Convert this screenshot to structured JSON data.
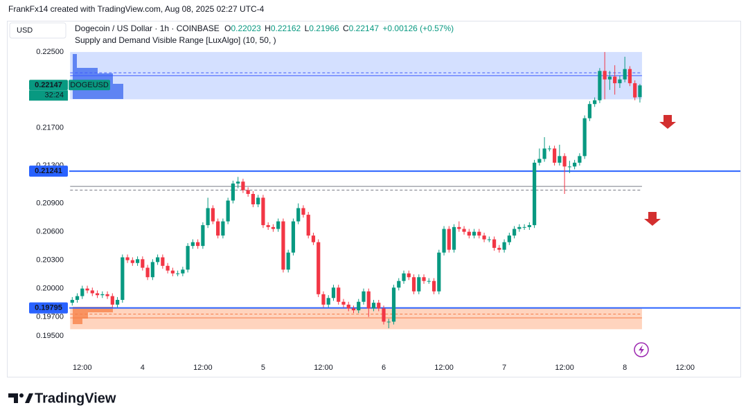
{
  "chart_data": {
    "type": "candlestick",
    "caption": "FrankFx14 created with TradingView.com, Aug 08, 2025 02:27 UTC-4",
    "currency": "USD",
    "title": "Dogecoin / US Dollar · 1h · COINBASE",
    "ohlc_header": {
      "o_label": "O",
      "o": 0.22023,
      "h_label": "H",
      "h": 0.22162,
      "l_label": "L",
      "l": 0.21966,
      "c_label": "C",
      "c": 0.22147,
      "change": "+0.00126 (+0.57%)"
    },
    "indicator": "Supply and Demand Visible Range [LuxAlgo] (10, 50, )",
    "brand": "TradingView",
    "symbol": "DOGEUSD",
    "countdown": "32:24",
    "up_color": "#089981",
    "down_color": "#f23645",
    "xlim": [
      -3,
      143
    ],
    "ylim": [
      0.1928,
      0.2283
    ],
    "xticks": [
      {
        "value": 12,
        "label": "12:00"
      },
      {
        "value": 24,
        "label": "4"
      },
      {
        "value": 36,
        "label": "12:00"
      },
      {
        "value": 48,
        "label": "5"
      },
      {
        "value": 60,
        "label": "12:00"
      },
      {
        "value": 72,
        "label": "6"
      },
      {
        "value": 84,
        "label": "12:00"
      },
      {
        "value": 96,
        "label": "7"
      },
      {
        "value": 108,
        "label": "12:00"
      },
      {
        "value": 120,
        "label": "8"
      },
      {
        "value": 132,
        "label": "12:00"
      }
    ],
    "yticks": [
      {
        "value": 0.225,
        "label": "0.22500"
      },
      {
        "value": 0.217,
        "label": "0.21700"
      },
      {
        "value": 0.213,
        "label": "0.21300"
      },
      {
        "value": 0.209,
        "label": "0.20900"
      },
      {
        "value": 0.206,
        "label": "0.20600"
      },
      {
        "value": 0.203,
        "label": "0.20300"
      },
      {
        "value": 0.2,
        "label": "0.20000"
      },
      {
        "value": 0.197,
        "label": "0.19700"
      },
      {
        "value": 0.195,
        "label": "0.19500"
      }
    ],
    "grid": false,
    "levels": [
      {
        "value": 0.21241,
        "label": "0.21241",
        "color": "#2962ff"
      },
      {
        "value": 0.19795,
        "label": "0.19795",
        "color": "#2962ff"
      }
    ],
    "zones": [
      {
        "top": 0.225,
        "bottom": 0.22,
        "avg": 0.2228,
        "level": 0.2225,
        "fill": "rgba(41,98,255,0.2)",
        "line": "#3d5afe"
      },
      {
        "top": 0.19795,
        "bottom": 0.1957,
        "avg": 0.1973,
        "level": 0.1969,
        "fill": "rgba(255,112,40,0.3)",
        "line": "#f57c48"
      }
    ],
    "equilibrium": {
      "level": 0.2108,
      "avg": 0.2104
    },
    "x": [
      10,
      11,
      12,
      13,
      14,
      15,
      16,
      17,
      18,
      19,
      20,
      21,
      22,
      23,
      24,
      25,
      26,
      27,
      28,
      29,
      30,
      31,
      32,
      33,
      34,
      35,
      36,
      37,
      38,
      39,
      40,
      41,
      42,
      43,
      44,
      45,
      46,
      47,
      48,
      49,
      50,
      51,
      52,
      53,
      54,
      55,
      56,
      57,
      58,
      59,
      60,
      61,
      62,
      63,
      64,
      65,
      66,
      67,
      68,
      69,
      70,
      71,
      72,
      73,
      74,
      75,
      76,
      77,
      78,
      79,
      80,
      81,
      82,
      83,
      84,
      85,
      86,
      87,
      88,
      89,
      90,
      91,
      92,
      93,
      94,
      95,
      96,
      97,
      98,
      99,
      100,
      101,
      102,
      103,
      104,
      105,
      106,
      107,
      108,
      109,
      110,
      111,
      112,
      113,
      114,
      115,
      116,
      117,
      118,
      119,
      120,
      121,
      122,
      123
    ],
    "open": [
      0.1985,
      0.1988,
      0.1992,
      0.2,
      0.1998,
      0.1995,
      0.1993,
      0.1994,
      0.1992,
      0.1983,
      0.1988,
      0.2033,
      0.203,
      0.2027,
      0.2031,
      0.2022,
      0.2012,
      0.2028,
      0.2033,
      0.2024,
      0.2019,
      0.2016,
      0.2016,
      0.202,
      0.2045,
      0.2049,
      0.2045,
      0.2067,
      0.2085,
      0.2071,
      0.2056,
      0.2071,
      0.2093,
      0.2111,
      0.2113,
      0.2104,
      0.21,
      0.2089,
      0.2096,
      0.2067,
      0.2065,
      0.2063,
      0.2071,
      0.202,
      0.2038,
      0.2071,
      0.2085,
      0.2078,
      0.2056,
      0.2049,
      0.1994,
      0.1983,
      0.199,
      0.2001,
      0.1986,
      0.1983,
      0.1979,
      0.1977,
      0.1986,
      0.1997,
      0.1979,
      0.1985,
      0.1979,
      0.1965,
      0.1965,
      0.2001,
      0.2008,
      0.2016,
      0.2012,
      0.1997,
      0.2012,
      0.2008,
      0.2008,
      0.1997,
      0.2038,
      0.2063,
      0.2041,
      0.2065,
      0.2063,
      0.206,
      0.2056,
      0.206,
      0.2056,
      0.2052,
      0.2052,
      0.2043,
      0.2041,
      0.2049,
      0.2056,
      0.2063,
      0.2065,
      0.2065,
      0.2067,
      0.2133,
      0.2137,
      0.2148,
      0.2148,
      0.2133,
      0.214,
      0.2129,
      0.2129,
      0.2133,
      0.214,
      0.218,
      0.2195,
      0.2199,
      0.223,
      0.2221,
      0.2224,
      0.2217,
      0.2221,
      0.2232,
      0.2217,
      0.22023
    ],
    "high": [
      0.1991,
      0.1995,
      0.2003,
      0.2003,
      0.2001,
      0.1998,
      0.1997,
      0.1997,
      0.1995,
      0.1991,
      0.2036,
      0.2036,
      0.2033,
      0.2034,
      0.2034,
      0.2025,
      0.2031,
      0.2036,
      0.2036,
      0.2027,
      0.2022,
      0.2019,
      0.2023,
      0.2048,
      0.2052,
      0.2052,
      0.207,
      0.2096,
      0.2088,
      0.2074,
      0.2074,
      0.2096,
      0.2114,
      0.2118,
      0.2116,
      0.2107,
      0.2103,
      0.2099,
      0.2099,
      0.207,
      0.2068,
      0.2074,
      0.2074,
      0.2041,
      0.2074,
      0.209,
      0.2088,
      0.2081,
      0.2059,
      0.2052,
      0.1997,
      0.1993,
      0.2004,
      0.2004,
      0.1989,
      0.1986,
      0.1982,
      0.1989,
      0.2,
      0.2,
      0.1988,
      0.1988,
      0.1982,
      0.1968,
      0.2004,
      0.2011,
      0.2019,
      0.2019,
      0.2015,
      0.2015,
      0.2015,
      0.2011,
      0.2011,
      0.2041,
      0.2066,
      0.2066,
      0.2068,
      0.2071,
      0.2066,
      0.2063,
      0.2063,
      0.2063,
      0.2059,
      0.2055,
      0.2055,
      0.2046,
      0.2052,
      0.2059,
      0.2066,
      0.2068,
      0.2068,
      0.207,
      0.2136,
      0.2148,
      0.216,
      0.2151,
      0.2151,
      0.2152,
      0.2143,
      0.2135,
      0.2136,
      0.2143,
      0.2183,
      0.2198,
      0.2202,
      0.2233,
      0.225,
      0.223,
      0.2236,
      0.2225,
      0.2245,
      0.2235,
      0.222,
      0.22162
    ],
    "low": [
      0.1982,
      0.1985,
      0.1989,
      0.1995,
      0.1992,
      0.199,
      0.199,
      0.1989,
      0.198,
      0.198,
      0.1985,
      0.2027,
      0.2024,
      0.2024,
      0.2019,
      0.2009,
      0.2009,
      0.2025,
      0.2021,
      0.2016,
      0.2013,
      0.2013,
      0.2013,
      0.2017,
      0.2042,
      0.2042,
      0.2042,
      0.2064,
      0.2068,
      0.2053,
      0.2053,
      0.2068,
      0.209,
      0.2106,
      0.2101,
      0.2097,
      0.2086,
      0.2086,
      0.2064,
      0.2062,
      0.206,
      0.206,
      0.2017,
      0.2017,
      0.2035,
      0.2068,
      0.2075,
      0.2053,
      0.2046,
      0.1991,
      0.198,
      0.198,
      0.1987,
      0.1983,
      0.198,
      0.1976,
      0.1974,
      0.1974,
      0.1983,
      0.197,
      0.1976,
      0.1976,
      0.1962,
      0.1958,
      0.1962,
      0.1998,
      0.2005,
      0.2009,
      0.1994,
      0.1994,
      0.2005,
      0.2005,
      0.1994,
      0.1994,
      0.2035,
      0.2038,
      0.2038,
      0.206,
      0.2057,
      0.2053,
      0.2053,
      0.2053,
      0.2049,
      0.2049,
      0.204,
      0.2038,
      0.2038,
      0.2046,
      0.2053,
      0.206,
      0.2062,
      0.2062,
      0.2064,
      0.213,
      0.2134,
      0.2145,
      0.213,
      0.213,
      0.21,
      0.2122,
      0.2126,
      0.213,
      0.2137,
      0.2177,
      0.2192,
      0.2196,
      0.22,
      0.221,
      0.2205,
      0.2212,
      0.2218,
      0.2214,
      0.2199,
      0.21966
    ],
    "close": [
      0.1988,
      0.1992,
      0.2,
      0.1998,
      0.1995,
      0.1993,
      0.1994,
      0.1992,
      0.1983,
      0.1988,
      0.2033,
      0.203,
      0.2027,
      0.2031,
      0.2022,
      0.2012,
      0.2028,
      0.2033,
      0.2024,
      0.2019,
      0.2016,
      0.2016,
      0.202,
      0.2045,
      0.2049,
      0.2045,
      0.2067,
      0.2085,
      0.2071,
      0.2056,
      0.2071,
      0.2093,
      0.2111,
      0.2113,
      0.2104,
      0.21,
      0.2089,
      0.2096,
      0.2067,
      0.2065,
      0.2063,
      0.2071,
      0.202,
      0.2038,
      0.2071,
      0.2085,
      0.2078,
      0.2056,
      0.2049,
      0.1994,
      0.1983,
      0.199,
      0.2001,
      0.1986,
      0.1983,
      0.1979,
      0.1977,
      0.1986,
      0.1997,
      0.1979,
      0.1985,
      0.1979,
      0.1965,
      0.1965,
      0.2001,
      0.2008,
      0.2016,
      0.2012,
      0.1997,
      0.2012,
      0.2008,
      0.2008,
      0.1997,
      0.2038,
      0.2063,
      0.2041,
      0.2065,
      0.2063,
      0.206,
      0.2056,
      0.206,
      0.2056,
      0.2052,
      0.2052,
      0.2043,
      0.2041,
      0.2049,
      0.2056,
      0.2063,
      0.2065,
      0.2065,
      0.2067,
      0.2133,
      0.2137,
      0.2148,
      0.2148,
      0.2133,
      0.214,
      0.2129,
      0.2129,
      0.2133,
      0.214,
      0.218,
      0.2195,
      0.2199,
      0.223,
      0.2221,
      0.2224,
      0.2217,
      0.2221,
      0.2232,
      0.2217,
      0.2202,
      0.22147
    ]
  }
}
